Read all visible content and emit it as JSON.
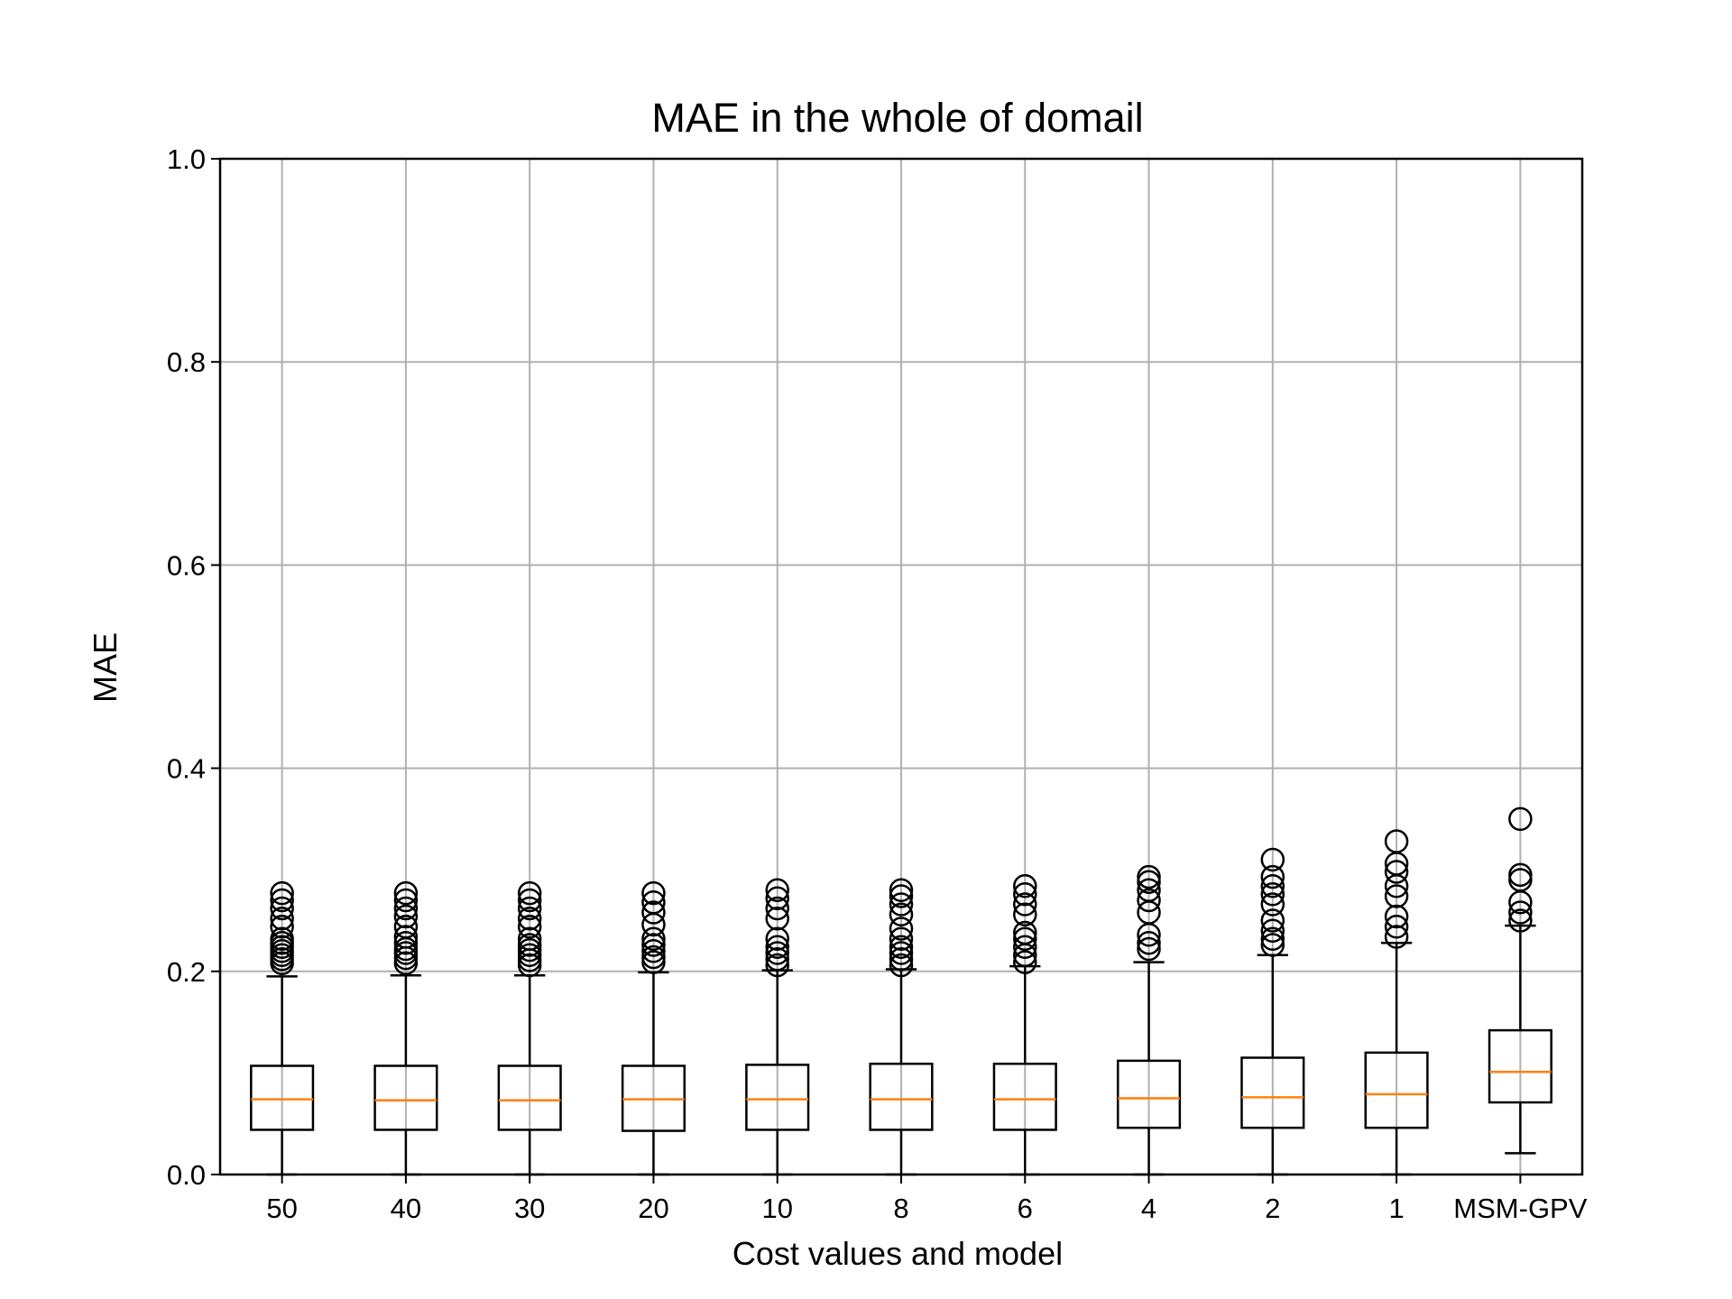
{
  "chart_data": {
    "type": "box",
    "title": "MAE in the whole of domail",
    "xlabel": "Cost values and model",
    "ylabel": "MAE",
    "ylim": [
      0.0,
      1.0
    ],
    "yticks": [
      "0.0",
      "0.2",
      "0.4",
      "0.6",
      "0.8",
      "1.0"
    ],
    "grid": true,
    "categories": [
      "50",
      "40",
      "30",
      "20",
      "10",
      "8",
      "6",
      "4",
      "2",
      "1",
      "MSM-GPV"
    ],
    "boxes": [
      {
        "category": "50",
        "whisker_low": 0.0,
        "q1": 0.044,
        "median": 0.074,
        "q3": 0.107,
        "whisker_high": 0.195,
        "outliers": [
          0.208,
          0.212,
          0.216,
          0.22,
          0.224,
          0.228,
          0.232,
          0.244,
          0.252,
          0.262,
          0.27,
          0.277
        ]
      },
      {
        "category": "40",
        "whisker_low": 0.0,
        "q1": 0.044,
        "median": 0.073,
        "q3": 0.107,
        "whisker_high": 0.196,
        "outliers": [
          0.208,
          0.213,
          0.218,
          0.222,
          0.228,
          0.234,
          0.244,
          0.254,
          0.262,
          0.27,
          0.277
        ]
      },
      {
        "category": "30",
        "whisker_low": 0.0,
        "q1": 0.044,
        "median": 0.073,
        "q3": 0.107,
        "whisker_high": 0.196,
        "outliers": [
          0.206,
          0.211,
          0.216,
          0.221,
          0.226,
          0.232,
          0.244,
          0.252,
          0.262,
          0.27,
          0.277
        ]
      },
      {
        "category": "20",
        "whisker_low": 0.0,
        "q1": 0.043,
        "median": 0.074,
        "q3": 0.107,
        "whisker_high": 0.199,
        "outliers": [
          0.209,
          0.214,
          0.22,
          0.226,
          0.232,
          0.246,
          0.258,
          0.268,
          0.277
        ]
      },
      {
        "category": "10",
        "whisker_low": 0.0,
        "q1": 0.044,
        "median": 0.074,
        "q3": 0.108,
        "whisker_high": 0.201,
        "outliers": [
          0.206,
          0.212,
          0.218,
          0.224,
          0.232,
          0.252,
          0.262,
          0.272,
          0.28
        ]
      },
      {
        "category": "8",
        "whisker_low": 0.0,
        "q1": 0.044,
        "median": 0.074,
        "q3": 0.109,
        "whisker_high": 0.202,
        "outliers": [
          0.206,
          0.212,
          0.218,
          0.224,
          0.232,
          0.242,
          0.256,
          0.266,
          0.274,
          0.28
        ]
      },
      {
        "category": "6",
        "whisker_low": 0.0,
        "q1": 0.044,
        "median": 0.074,
        "q3": 0.109,
        "whisker_high": 0.205,
        "outliers": [
          0.209,
          0.216,
          0.224,
          0.232,
          0.238,
          0.256,
          0.266,
          0.276,
          0.284
        ]
      },
      {
        "category": "4",
        "whisker_low": 0.0,
        "q1": 0.046,
        "median": 0.075,
        "q3": 0.112,
        "whisker_high": 0.209,
        "outliers": [
          0.222,
          0.228,
          0.236,
          0.258,
          0.27,
          0.28,
          0.288,
          0.293
        ]
      },
      {
        "category": "2",
        "whisker_low": 0.0,
        "q1": 0.046,
        "median": 0.076,
        "q3": 0.115,
        "whisker_high": 0.216,
        "outliers": [
          0.226,
          0.232,
          0.24,
          0.25,
          0.266,
          0.276,
          0.284,
          0.293,
          0.31
        ]
      },
      {
        "category": "1",
        "whisker_low": 0.0,
        "q1": 0.046,
        "median": 0.079,
        "q3": 0.12,
        "whisker_high": 0.228,
        "outliers": [
          0.234,
          0.244,
          0.254,
          0.274,
          0.284,
          0.298,
          0.306,
          0.328
        ]
      },
      {
        "category": "MSM-GPV",
        "whisker_low": 0.021,
        "q1": 0.071,
        "median": 0.101,
        "q3": 0.142,
        "whisker_high": 0.245,
        "outliers": [
          0.25,
          0.258,
          0.268,
          0.29,
          0.295,
          0.35
        ]
      }
    ],
    "colors": {
      "box": "#000000",
      "median": "#ff7f0e",
      "grid": "#b0b0b0"
    }
  }
}
